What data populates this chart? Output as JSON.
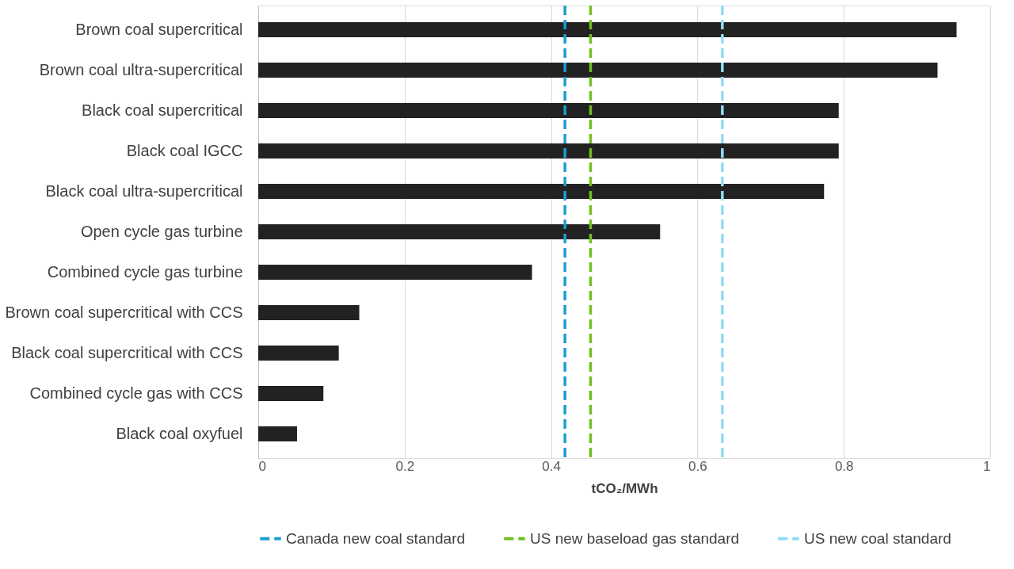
{
  "chart_data": {
    "type": "bar",
    "orientation": "horizontal",
    "xlabel": "tCO₂/MWh",
    "categories": [
      "Brown coal supercritical",
      "Brown coal ultra-supercritical",
      "Black coal supercritical",
      "Black coal IGCC",
      "Black coal ultra-supercritical",
      "Open cycle gas turbine",
      "Combined cycle gas turbine",
      "Brown coal supercritical with CCS",
      "Black coal supercritical with CCS",
      "Combined cycle gas with CCS",
      "Black coal oxyfuel"
    ],
    "values": [
      0.954,
      0.928,
      0.793,
      0.793,
      0.773,
      0.549,
      0.374,
      0.138,
      0.11,
      0.089,
      0.053
    ],
    "color": "#222222",
    "xlim": [
      0,
      1
    ],
    "xticks": [
      0,
      0.2,
      0.4,
      0.6,
      0.8,
      1
    ],
    "grid": "x",
    "ref_lines": [
      {
        "axis": "x",
        "value": 0.419,
        "label": "Canada new coal standard",
        "color": "#1a9fd0",
        "line_style": "dashed"
      },
      {
        "axis": "x",
        "value": 0.454,
        "label": "US new baseload gas standard",
        "color": "#72bf1f",
        "line_style": "dashed"
      },
      {
        "axis": "x",
        "value": 0.634,
        "label": "US new coal standard",
        "color": "#93dcf2",
        "line_style": "dashed"
      }
    ],
    "legend": "bottom"
  }
}
